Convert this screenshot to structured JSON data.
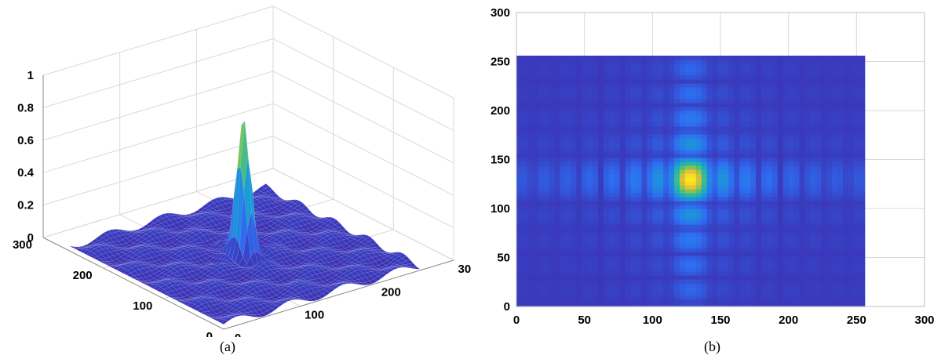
{
  "captions": {
    "a": "(a)",
    "b": "(b)"
  },
  "colors": {
    "low": "#3b2cb0",
    "mid": "#1fa7bd",
    "high": "#f9e21b",
    "grid": "#d9d9d9",
    "axis": "#000000"
  },
  "chart_data": [
    {
      "type": "surface3d",
      "panel": "(a)",
      "xlim": [
        0,
        300
      ],
      "ylim": [
        0,
        300
      ],
      "zlim": [
        0,
        1
      ],
      "x_ticks": [
        "0",
        "100",
        "200",
        "300"
      ],
      "y_ticks": [
        "0",
        "100",
        "200",
        "300"
      ],
      "z_ticks": [
        "0",
        "0.2",
        "0.4",
        "0.6",
        "0.8",
        "1"
      ],
      "peak": {
        "x": 128,
        "y": 128,
        "z": 0.88
      },
      "colormap": "parula"
    },
    {
      "type": "heatmap",
      "panel": "(b)",
      "xlim": [
        0,
        300
      ],
      "ylim": [
        0,
        300
      ],
      "data_extent": {
        "x": [
          0,
          256
        ],
        "y": [
          0,
          256
        ]
      },
      "x_ticks": [
        "0",
        "50",
        "100",
        "150",
        "200",
        "250",
        "300"
      ],
      "y_ticks": [
        "0",
        "50",
        "100",
        "150",
        "200",
        "250",
        "300"
      ],
      "peak": {
        "x": 128,
        "y": 130
      },
      "grid": true,
      "colormap": "parula"
    }
  ]
}
